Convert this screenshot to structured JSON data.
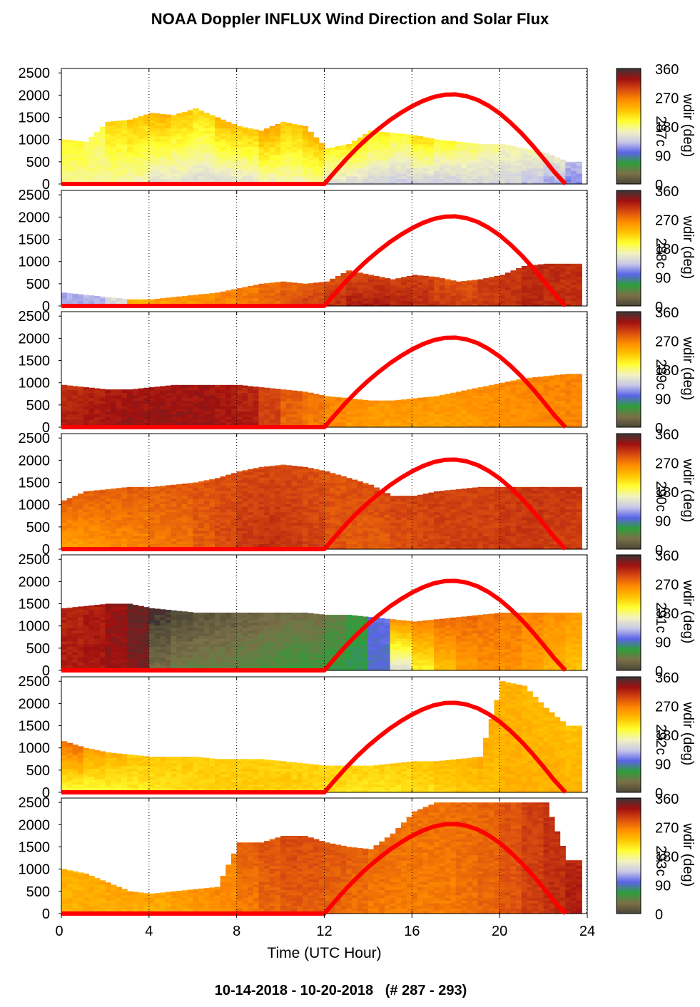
{
  "title": "NOAA Doppler INFLUX Wind Direction and Solar Flux",
  "footer": "10-14-2018 - 10-20-2018   (# 287 - 293)",
  "x_axis_label": "Time (UTC Hour)",
  "chart_data": {
    "type": "heatmap",
    "x_ticks": [
      0,
      4,
      8,
      12,
      16,
      20,
      24
    ],
    "xlim": [
      0,
      24
    ],
    "y_ticks": [
      0,
      500,
      1000,
      1500,
      2000,
      2500
    ],
    "ylim": [
      0,
      2600
    ],
    "colorbar": {
      "label": "wdir (deg)",
      "ticks": [
        0,
        90,
        180,
        270,
        360
      ],
      "colors": [
        "#4a4535",
        "#7a7048",
        "#2e9e3a",
        "#5b64e8",
        "#c8c8e8",
        "#f2f2c0",
        "#ffff30",
        "#ffc300",
        "#ff8c00",
        "#d84a10",
        "#a01010",
        "#3a3535"
      ]
    },
    "solar_curve": {
      "color": "#ff0000",
      "x": [
        12,
        12.5,
        13,
        13.5,
        14,
        14.5,
        15,
        15.5,
        16,
        16.5,
        17,
        17.5,
        18,
        18.5,
        19,
        19.5,
        20,
        20.5,
        21,
        21.5,
        22,
        22.5,
        23
      ],
      "y": [
        0,
        285,
        560,
        815,
        1045,
        1250,
        1440,
        1605,
        1750,
        1870,
        1960,
        2010,
        2015,
        1975,
        1890,
        1760,
        1590,
        1380,
        1140,
        870,
        575,
        270,
        0
      ]
    },
    "panels": [
      {
        "day_label": "287c",
        "top_height_profile": [
          1000,
          950,
          1400,
          1450,
          1600,
          1550,
          1700,
          1500,
          1300,
          1200,
          1400,
          1300,
          800,
          900,
          1200,
          1150,
          1100,
          1000,
          950,
          900,
          900,
          800,
          700,
          500
        ],
        "dominant_wdir_low": [
          175,
          175,
          170,
          165,
          150,
          150,
          145,
          145,
          150,
          160,
          165,
          170,
          150,
          145,
          140,
          135,
          135,
          135,
          140,
          140,
          140,
          130,
          120,
          110
        ],
        "dominant_wdir_high": [
          200,
          190,
          220,
          230,
          240,
          230,
          220,
          240,
          230,
          250,
          230,
          240,
          210,
          220,
          210,
          200,
          220,
          200,
          190,
          180,
          170,
          170,
          160,
          130
        ]
      },
      {
        "day_label": "288c",
        "top_height_profile": [
          300,
          250,
          200,
          150,
          150,
          200,
          250,
          300,
          400,
          500,
          550,
          500,
          550,
          800,
          700,
          600,
          700,
          650,
          550,
          600,
          700,
          900,
          950,
          950
        ],
        "dominant_wdir_low": [
          120,
          120,
          140,
          240,
          250,
          255,
          260,
          265,
          270,
          280,
          290,
          300,
          310,
          320,
          320,
          315,
          310,
          305,
          300,
          305,
          310,
          315,
          310,
          310
        ],
        "dominant_wdir_high": [
          120,
          130,
          150,
          240,
          250,
          255,
          260,
          265,
          270,
          275,
          280,
          285,
          290,
          290,
          300,
          300,
          300,
          290,
          290,
          300,
          305,
          310,
          310,
          310
        ]
      },
      {
        "day_label": "289c",
        "top_height_profile": [
          950,
          900,
          850,
          850,
          900,
          950,
          950,
          950,
          950,
          900,
          850,
          800,
          700,
          650,
          600,
          600,
          650,
          700,
          800,
          900,
          1000,
          1100,
          1150,
          1200
        ],
        "dominant_wdir_low": [
          320,
          325,
          330,
          330,
          330,
          330,
          330,
          325,
          320,
          300,
          280,
          270,
          260,
          255,
          250,
          250,
          250,
          250,
          250,
          255,
          258,
          260,
          262,
          265
        ],
        "dominant_wdir_high": [
          310,
          315,
          320,
          325,
          325,
          325,
          325,
          320,
          315,
          300,
          285,
          275,
          265,
          260,
          258,
          258,
          258,
          258,
          260,
          262,
          262,
          265,
          265,
          265
        ]
      },
      {
        "day_label": "290c",
        "top_height_profile": [
          1100,
          1300,
          1350,
          1400,
          1400,
          1450,
          1500,
          1600,
          1750,
          1850,
          1900,
          1850,
          1750,
          1600,
          1450,
          1200,
          1200,
          1300,
          1350,
          1400,
          1400,
          1400,
          1400,
          1400
        ],
        "dominant_wdir_low": [
          250,
          255,
          260,
          265,
          270,
          275,
          285,
          295,
          305,
          310,
          305,
          300,
          290,
          285,
          285,
          290,
          295,
          300,
          300,
          300,
          305,
          305,
          300,
          300
        ],
        "dominant_wdir_high": [
          285,
          285,
          285,
          285,
          285,
          288,
          290,
          292,
          295,
          295,
          295,
          292,
          290,
          292,
          295,
          298,
          300,
          300,
          300,
          300,
          302,
          305,
          305,
          305
        ]
      },
      {
        "day_label": "291c",
        "top_height_profile": [
          1400,
          1450,
          1500,
          1500,
          1400,
          1350,
          1300,
          1300,
          1300,
          1300,
          1300,
          1300,
          1250,
          1250,
          1200,
          1150,
          1100,
          1150,
          1200,
          1250,
          1300,
          1300,
          1300,
          1300
        ],
        "dominant_wdir_low": [
          320,
          325,
          330,
          340,
          30,
          40,
          45,
          45,
          50,
          55,
          60,
          60,
          65,
          70,
          90,
          150,
          200,
          230,
          250,
          260,
          260,
          250,
          240,
          230
        ],
        "dominant_wdir_high": [
          315,
          320,
          330,
          345,
          355,
          5,
          10,
          15,
          20,
          25,
          30,
          30,
          40,
          60,
          100,
          260,
          270,
          280,
          280,
          275,
          270,
          265,
          260,
          255
        ]
      },
      {
        "day_label": "292c",
        "top_height_profile": [
          1150,
          1000,
          900,
          850,
          800,
          800,
          800,
          750,
          750,
          750,
          700,
          650,
          600,
          600,
          600,
          650,
          700,
          700,
          750,
          800,
          2500,
          2400,
          1900,
          1500
        ],
        "dominant_wdir_low": [
          195,
          195,
          200,
          205,
          210,
          215,
          220,
          225,
          225,
          225,
          225,
          220,
          215,
          210,
          210,
          210,
          215,
          220,
          225,
          230,
          240,
          240,
          240,
          240
        ],
        "dominant_wdir_high": [
          280,
          255,
          240,
          230,
          228,
          226,
          224,
          222,
          222,
          222,
          222,
          222,
          222,
          222,
          222,
          225,
          230,
          235,
          240,
          245,
          240,
          235,
          235,
          230
        ]
      },
      {
        "day_label": "293c",
        "top_height_profile": [
          1000,
          900,
          700,
          500,
          450,
          500,
          550,
          600,
          1600,
          1600,
          1750,
          1750,
          1600,
          1500,
          1450,
          1800,
          2300,
          2500,
          2500,
          2500,
          2500,
          2500,
          2500,
          1200
        ],
        "dominant_wdir_low": [
          240,
          240,
          240,
          240,
          240,
          250,
          255,
          260,
          270,
          280,
          285,
          285,
          280,
          275,
          270,
          270,
          270,
          270,
          275,
          280,
          290,
          300,
          310,
          320
        ],
        "dominant_wdir_high": [
          240,
          245,
          250,
          250,
          250,
          255,
          260,
          265,
          285,
          290,
          295,
          292,
          288,
          285,
          280,
          275,
          275,
          275,
          278,
          282,
          290,
          300,
          310,
          315
        ]
      }
    ]
  }
}
